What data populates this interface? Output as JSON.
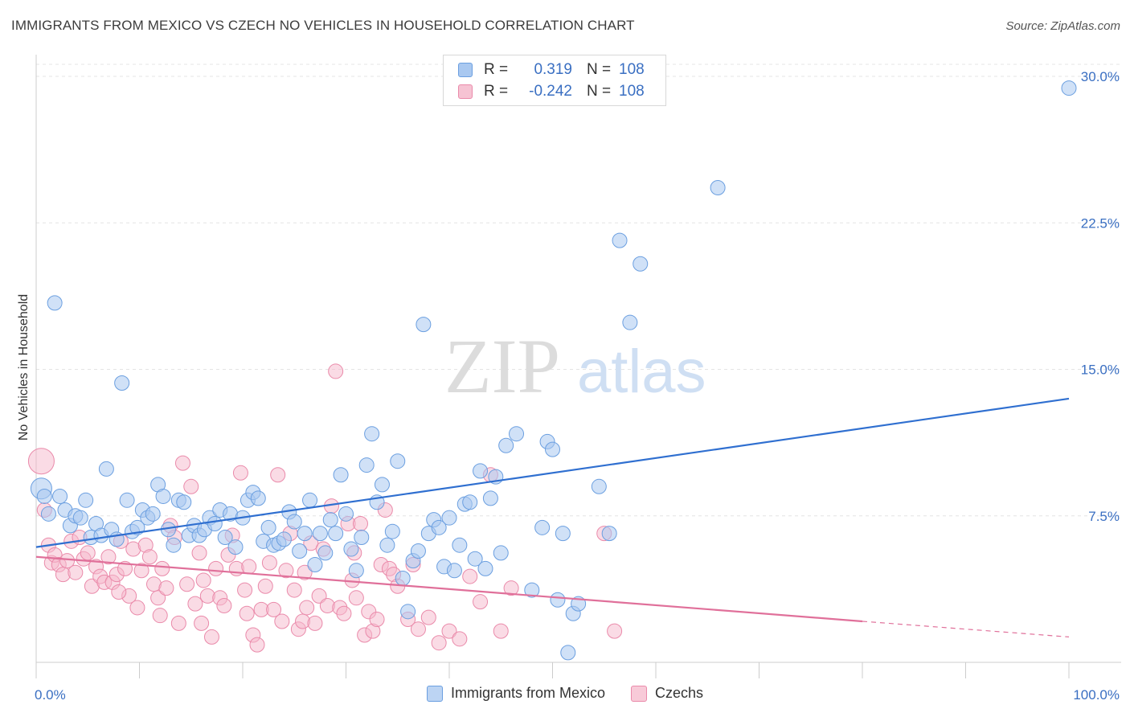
{
  "header": {
    "title": "IMMIGRANTS FROM MEXICO VS CZECH NO VEHICLES IN HOUSEHOLD CORRELATION CHART",
    "source": "Source: ZipAtlas.com"
  },
  "watermark": {
    "zip": "ZIP",
    "atlas": "atlas"
  },
  "legend": {
    "rows": [
      {
        "r_label": "R =",
        "r_value": "0.319",
        "n_label": "N =",
        "n_value": "108"
      },
      {
        "r_label": "R =",
        "r_value": "-0.242",
        "n_label": "N =",
        "n_value": "108"
      }
    ]
  },
  "bottom_legend": {
    "items": [
      {
        "label": "Immigrants from Mexico"
      },
      {
        "label": "Czechs"
      }
    ]
  },
  "chart_data": {
    "type": "scatter",
    "title": "IMMIGRANTS FROM MEXICO VS CZECH NO VEHICLES IN HOUSEHOLD CORRELATION CHART",
    "xlabel": "",
    "ylabel": "No Vehicles in Household",
    "xlim": [
      0,
      100
    ],
    "ylim": [
      0,
      30
    ],
    "x_tick_labels": [
      "0.0%",
      "100.0%"
    ],
    "y_ticks": [
      7.5,
      15.0,
      22.5,
      30.0
    ],
    "y_tick_labels": [
      "7.5%",
      "15.0%",
      "22.5%",
      "30.0%"
    ],
    "grid": true,
    "legend_position": "top-center",
    "colors": {
      "mexico_fill": "#a9c8f0",
      "mexico_stroke": "#6b9fe0",
      "mexico_line": "#2f6fd0",
      "czech_fill": "#f6b8cc",
      "czech_stroke": "#ea8aaa",
      "czech_line": "#e0709a"
    },
    "series": [
      {
        "name": "Immigrants from Mexico",
        "trend": {
          "x": [
            0,
            100
          ],
          "y": [
            5.9,
            13.5
          ]
        },
        "points": [
          [
            0.5,
            8.9
          ],
          [
            0.8,
            8.5
          ],
          [
            1.2,
            7.6
          ],
          [
            1.8,
            18.4
          ],
          [
            2.3,
            8.5
          ],
          [
            2.8,
            7.8
          ],
          [
            3.3,
            7.0
          ],
          [
            3.8,
            7.5
          ],
          [
            4.3,
            7.4
          ],
          [
            4.8,
            8.3
          ],
          [
            5.3,
            6.4
          ],
          [
            5.8,
            7.1
          ],
          [
            6.3,
            6.5
          ],
          [
            6.8,
            9.9
          ],
          [
            7.3,
            6.8
          ],
          [
            7.8,
            6.3
          ],
          [
            8.3,
            14.3
          ],
          [
            8.8,
            8.3
          ],
          [
            9.3,
            6.7
          ],
          [
            9.8,
            6.9
          ],
          [
            10.3,
            7.8
          ],
          [
            10.8,
            7.4
          ],
          [
            11.3,
            7.6
          ],
          [
            11.8,
            9.1
          ],
          [
            12.3,
            8.5
          ],
          [
            12.8,
            6.8
          ],
          [
            13.3,
            6.0
          ],
          [
            13.8,
            8.3
          ],
          [
            14.3,
            8.2
          ],
          [
            14.8,
            6.5
          ],
          [
            15.3,
            7.0
          ],
          [
            15.8,
            6.5
          ],
          [
            16.3,
            6.8
          ],
          [
            16.8,
            7.4
          ],
          [
            17.3,
            7.1
          ],
          [
            17.8,
            7.8
          ],
          [
            18.3,
            6.4
          ],
          [
            18.8,
            7.6
          ],
          [
            19.3,
            5.9
          ],
          [
            20.0,
            7.4
          ],
          [
            20.5,
            8.3
          ],
          [
            21.0,
            8.7
          ],
          [
            21.5,
            8.4
          ],
          [
            22.0,
            6.2
          ],
          [
            22.5,
            6.9
          ],
          [
            23.0,
            6.0
          ],
          [
            23.5,
            6.1
          ],
          [
            24.0,
            6.3
          ],
          [
            24.5,
            7.7
          ],
          [
            25.0,
            7.2
          ],
          [
            25.5,
            5.7
          ],
          [
            26.0,
            6.6
          ],
          [
            26.5,
            8.3
          ],
          [
            27.0,
            5.0
          ],
          [
            27.5,
            6.6
          ],
          [
            28.0,
            5.6
          ],
          [
            28.5,
            7.3
          ],
          [
            29.0,
            6.6
          ],
          [
            29.5,
            9.6
          ],
          [
            30.0,
            7.6
          ],
          [
            30.5,
            5.8
          ],
          [
            31.0,
            4.7
          ],
          [
            31.5,
            6.4
          ],
          [
            32.0,
            10.1
          ],
          [
            32.5,
            11.7
          ],
          [
            33.0,
            8.2
          ],
          [
            33.5,
            9.1
          ],
          [
            34.0,
            6.0
          ],
          [
            34.5,
            6.7
          ],
          [
            35.0,
            10.3
          ],
          [
            35.5,
            4.3
          ],
          [
            36.0,
            2.6
          ],
          [
            36.5,
            5.2
          ],
          [
            37.0,
            5.7
          ],
          [
            37.5,
            17.3
          ],
          [
            38.0,
            6.6
          ],
          [
            38.5,
            7.3
          ],
          [
            39.0,
            6.9
          ],
          [
            39.5,
            4.9
          ],
          [
            40.0,
            7.4
          ],
          [
            40.5,
            4.7
          ],
          [
            41.0,
            6.0
          ],
          [
            41.5,
            8.1
          ],
          [
            42.0,
            8.2
          ],
          [
            42.5,
            5.3
          ],
          [
            43.0,
            9.8
          ],
          [
            43.5,
            4.8
          ],
          [
            44.0,
            8.4
          ],
          [
            44.5,
            9.5
          ],
          [
            45.0,
            5.6
          ],
          [
            45.5,
            11.1
          ],
          [
            46.5,
            11.7
          ],
          [
            49.0,
            6.9
          ],
          [
            49.5,
            11.3
          ],
          [
            50.0,
            10.9
          ],
          [
            50.5,
            3.2
          ],
          [
            51.0,
            6.6
          ],
          [
            51.5,
            0.5
          ],
          [
            52.0,
            2.5
          ],
          [
            52.5,
            3.0
          ],
          [
            48.0,
            3.7
          ],
          [
            54.5,
            9.0
          ],
          [
            55.5,
            6.6
          ],
          [
            56.5,
            21.6
          ],
          [
            57.5,
            17.4
          ],
          [
            58.5,
            20.4
          ],
          [
            66.0,
            24.3
          ],
          [
            100.0,
            29.4
          ]
        ]
      },
      {
        "name": "Czechs",
        "trend": {
          "x": [
            0,
            80
          ],
          "y": [
            5.4,
            2.1
          ]
        },
        "trend_dashed": {
          "x": [
            80,
            100
          ],
          "y": [
            2.1,
            1.3
          ]
        },
        "points": [
          [
            0.5,
            10.3
          ],
          [
            0.8,
            7.8
          ],
          [
            1.2,
            6.0
          ],
          [
            1.5,
            5.1
          ],
          [
            1.8,
            5.5
          ],
          [
            2.2,
            5.0
          ],
          [
            2.6,
            4.5
          ],
          [
            3.0,
            5.2
          ],
          [
            3.4,
            6.2
          ],
          [
            3.8,
            4.6
          ],
          [
            4.2,
            6.4
          ],
          [
            4.6,
            5.3
          ],
          [
            5.0,
            5.6
          ],
          [
            5.4,
            3.9
          ],
          [
            5.8,
            4.9
          ],
          [
            6.2,
            4.4
          ],
          [
            6.6,
            4.1
          ],
          [
            7.0,
            5.4
          ],
          [
            7.4,
            4.1
          ],
          [
            7.8,
            4.5
          ],
          [
            8.2,
            6.2
          ],
          [
            8.6,
            4.8
          ],
          [
            9.0,
            3.4
          ],
          [
            9.4,
            5.8
          ],
          [
            9.8,
            2.8
          ],
          [
            10.2,
            4.7
          ],
          [
            10.6,
            6.0
          ],
          [
            11.0,
            5.4
          ],
          [
            11.4,
            4.0
          ],
          [
            11.8,
            3.3
          ],
          [
            12.2,
            4.8
          ],
          [
            12.6,
            3.8
          ],
          [
            13.0,
            7.0
          ],
          [
            13.4,
            6.4
          ],
          [
            13.8,
            2.0
          ],
          [
            14.2,
            10.2
          ],
          [
            14.6,
            4.0
          ],
          [
            15.0,
            9.0
          ],
          [
            15.4,
            3.0
          ],
          [
            15.8,
            5.6
          ],
          [
            16.2,
            4.2
          ],
          [
            16.6,
            3.4
          ],
          [
            17.0,
            1.3
          ],
          [
            17.4,
            4.8
          ],
          [
            17.8,
            3.3
          ],
          [
            18.2,
            2.9
          ],
          [
            18.6,
            5.5
          ],
          [
            19.0,
            6.5
          ],
          [
            19.4,
            4.8
          ],
          [
            19.8,
            9.7
          ],
          [
            20.2,
            3.7
          ],
          [
            20.6,
            4.9
          ],
          [
            21.0,
            1.4
          ],
          [
            21.4,
            0.9
          ],
          [
            21.8,
            2.7
          ],
          [
            22.2,
            3.9
          ],
          [
            22.6,
            5.1
          ],
          [
            23.0,
            2.7
          ],
          [
            23.4,
            9.6
          ],
          [
            23.8,
            2.1
          ],
          [
            24.2,
            4.7
          ],
          [
            24.6,
            6.6
          ],
          [
            25.0,
            3.7
          ],
          [
            25.4,
            1.7
          ],
          [
            25.8,
            2.1
          ],
          [
            26.2,
            2.8
          ],
          [
            26.6,
            6.1
          ],
          [
            27.0,
            2.0
          ],
          [
            27.4,
            3.4
          ],
          [
            27.8,
            5.8
          ],
          [
            28.2,
            2.9
          ],
          [
            28.6,
            8.0
          ],
          [
            29.0,
            14.9
          ],
          [
            29.4,
            2.8
          ],
          [
            29.8,
            2.5
          ],
          [
            30.2,
            7.1
          ],
          [
            30.6,
            4.2
          ],
          [
            31.0,
            3.3
          ],
          [
            31.4,
            7.1
          ],
          [
            31.8,
            1.4
          ],
          [
            32.2,
            2.6
          ],
          [
            32.6,
            1.6
          ],
          [
            33.0,
            2.2
          ],
          [
            33.4,
            5.0
          ],
          [
            33.8,
            7.8
          ],
          [
            34.2,
            4.8
          ],
          [
            34.6,
            4.5
          ],
          [
            35.0,
            3.9
          ],
          [
            36.0,
            2.2
          ],
          [
            37.0,
            1.7
          ],
          [
            38.0,
            2.3
          ],
          [
            39.0,
            1.0
          ],
          [
            40.0,
            1.6
          ],
          [
            41.0,
            1.2
          ],
          [
            42.0,
            4.4
          ],
          [
            43.0,
            3.1
          ],
          [
            44.0,
            9.6
          ],
          [
            45.0,
            1.6
          ],
          [
            46.0,
            3.8
          ],
          [
            55.0,
            6.6
          ],
          [
            56.0,
            1.6
          ],
          [
            20.4,
            2.5
          ],
          [
            30.8,
            5.6
          ],
          [
            12.0,
            2.4
          ],
          [
            8.0,
            3.6
          ],
          [
            16.0,
            2.0
          ],
          [
            26.0,
            4.6
          ],
          [
            36.5,
            5.0
          ]
        ]
      }
    ]
  }
}
